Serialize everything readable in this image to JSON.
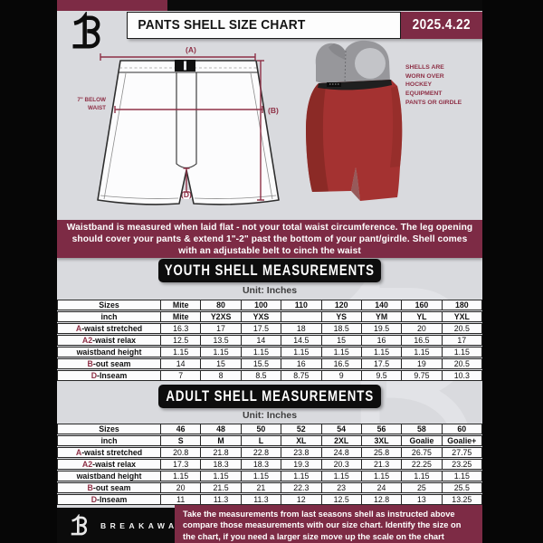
{
  "header": {
    "title": "PANTS SHELL SIZE CHART",
    "date": "2025.4.22"
  },
  "diagram": {
    "a_label": "(A)",
    "b_label": "(B)",
    "c_label": "(C)",
    "d_label": "(D)",
    "waist_note": "7\" BELOW WAIST",
    "shell_note": "SHELLS ARE WORN OVER HOCKEY EQUIPMENT PANTS OR GIRDLE"
  },
  "banner": {
    "text": "Waistband is measured when laid flat - not your total waist circumference. The leg opening should cover your pants & extend 1\"-2\" past the bottom of your pant/girdle. Shell comes with an adjustable belt to cinch the waist"
  },
  "youth_section": {
    "heading": "YOUTH SHELL MEASUREMENTS",
    "unit_label": "Unit: Inches",
    "table": {
      "rows": [
        {
          "prefix": "",
          "label": "Sizes",
          "header": true,
          "values": [
            "Mite",
            "80",
            "100",
            "110",
            "120",
            "140",
            "160",
            "180"
          ]
        },
        {
          "prefix": "",
          "label": "inch",
          "header": true,
          "values": [
            "Mite",
            "Y2XS",
            "YXS",
            "",
            "YS",
            "YM",
            "YL",
            "YXL"
          ]
        },
        {
          "prefix": "A",
          "label": "-waist stretched",
          "header": false,
          "values": [
            "16.3",
            "17",
            "17.5",
            "18",
            "18.5",
            "19.5",
            "20",
            "20.5"
          ]
        },
        {
          "prefix": "A2",
          "label": "-waist relax",
          "header": false,
          "values": [
            "12.5",
            "13.5",
            "14",
            "14.5",
            "15",
            "16",
            "16.5",
            "17"
          ]
        },
        {
          "prefix": "",
          "label": "waistband height",
          "header": false,
          "values": [
            "1.15",
            "1.15",
            "1.15",
            "1.15",
            "1.15",
            "1.15",
            "1.15",
            "1.15"
          ]
        },
        {
          "prefix": "B",
          "label": "-out seam",
          "header": false,
          "values": [
            "14",
            "15",
            "15.5",
            "16",
            "16.5",
            "17.5",
            "19",
            "20.5"
          ]
        },
        {
          "prefix": "D",
          "label": "-Inseam",
          "header": false,
          "values": [
            "7",
            "8",
            "8.5",
            "8.75",
            "9",
            "9.5",
            "9.75",
            "10.3"
          ]
        }
      ]
    }
  },
  "adult_section": {
    "heading": "ADULT SHELL MEASUREMENTS",
    "unit_label": "Unit: Inches",
    "table": {
      "rows": [
        {
          "prefix": "",
          "label": "Sizes",
          "header": true,
          "values": [
            "46",
            "48",
            "50",
            "52",
            "54",
            "56",
            "58",
            "60"
          ]
        },
        {
          "prefix": "",
          "label": "inch",
          "header": true,
          "values": [
            "S",
            "M",
            "L",
            "XL",
            "2XL",
            "3XL",
            "Goalie",
            "Goalie+"
          ]
        },
        {
          "prefix": "A",
          "label": "-waist stretched",
          "header": false,
          "values": [
            "20.8",
            "21.8",
            "22.8",
            "23.8",
            "24.8",
            "25.8",
            "26.75",
            "27.75"
          ]
        },
        {
          "prefix": "A2",
          "label": "-waist relax",
          "header": false,
          "values": [
            "17.3",
            "18.3",
            "18.3",
            "19.3",
            "20.3",
            "21.3",
            "22.25",
            "23.25"
          ]
        },
        {
          "prefix": "",
          "label": "waistband height",
          "header": false,
          "values": [
            "1.15",
            "1.15",
            "1.15",
            "1.15",
            "1.15",
            "1.15",
            "1.15",
            "1.15"
          ]
        },
        {
          "prefix": "B",
          "label": "-out seam",
          "header": false,
          "values": [
            "20",
            "21.5",
            "21",
            "22.3",
            "23",
            "24",
            "25",
            "25.5"
          ]
        },
        {
          "prefix": "D",
          "label": "-Inseam",
          "header": false,
          "values": [
            "11",
            "11.3",
            "11.3",
            "12",
            "12.5",
            "12.8",
            "13",
            "13.25"
          ]
        }
      ]
    }
  },
  "footer": {
    "brand": "BREAKAWAY",
    "note": "Take the measurements from last seasons shell as instructed above compare those measurements with our size chart. Identify the size on the chart, if you need a larger size move up the scale on the chart"
  },
  "colors": {
    "maroon": "#7d2b45",
    "accent": "#8e3046",
    "black": "#0b0b0b",
    "page_bg": "#d9dade"
  }
}
